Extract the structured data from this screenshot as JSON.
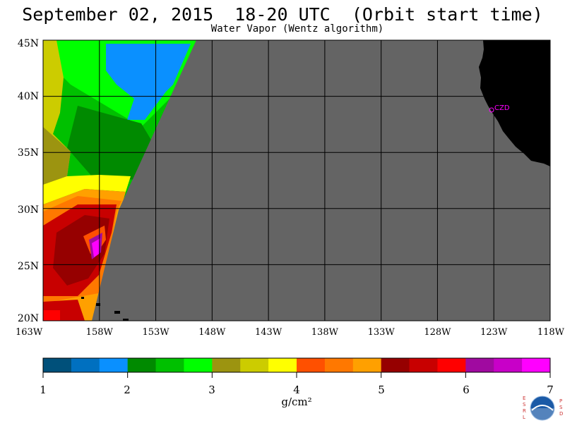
{
  "header": {
    "title": "September 02, 2015  18-20 UTC  (Orbit start time)",
    "subtitle": "Water Vapor (Wentz algorithm)"
  },
  "map": {
    "lat_labels": [
      "45N",
      "40N",
      "35N",
      "30N",
      "25N",
      "20N"
    ],
    "lon_labels": [
      "163W",
      "158W",
      "153W",
      "148W",
      "143W",
      "138W",
      "133W",
      "128W",
      "123W",
      "118W"
    ],
    "lat_range": [
      20,
      45
    ],
    "lon_range": [
      -163,
      -118
    ],
    "station_label": "CZD",
    "colors": {
      "no_data": "#646464",
      "land": "#000000",
      "station": "#ff00ff"
    }
  },
  "colorbar": {
    "tick_labels": [
      "1",
      "2",
      "3",
      "4",
      "5",
      "6",
      "7"
    ],
    "units": "g/cm²",
    "colors": [
      "#00507a",
      "#0070c0",
      "#0a90ff",
      "#008a00",
      "#00c000",
      "#00ff00",
      "#9c9410",
      "#cccc00",
      "#ffff00",
      "#ff5000",
      "#ff7800",
      "#ffa000",
      "#960000",
      "#c80000",
      "#ff0000",
      "#a00aa0",
      "#c800c8",
      "#ff00ff"
    ]
  },
  "logo": {
    "name": "NOAA",
    "left_letters": "ESRL",
    "right_letters": "PSD"
  }
}
